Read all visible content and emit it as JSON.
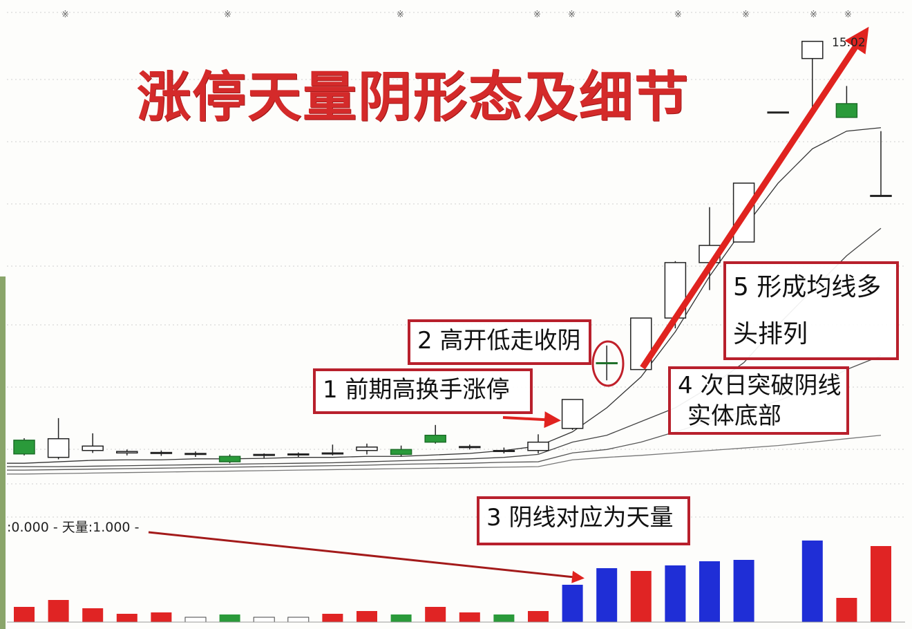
{
  "title": "涨停天量阴形态及细节",
  "high_label": "15.02",
  "legend_text": ":0.000 - 天量:1.000 -",
  "top_marker": "※",
  "annotations": [
    {
      "id": "1",
      "text": "1 前期高换手涨停"
    },
    {
      "id": "2",
      "text": "2 高开低走收阴"
    },
    {
      "id": "3",
      "text": "3 阴线对应为天量"
    },
    {
      "id": "4",
      "line1": "4 次日突破阴线",
      "line2": "实体底部"
    },
    {
      "id": "5",
      "line1": "5 形成均线多",
      "line2": "头排列"
    }
  ],
  "colors": {
    "title": "#d42a2a",
    "box_border": "#b8202c",
    "arrow": "#e0231f",
    "up_volume": "#e02424",
    "down_volume": "#1f2ed6",
    "down_candle": "#2a9a3a",
    "flat_volume": "#2a9a3a"
  },
  "chart_data": {
    "type": "candlestick",
    "grid": true,
    "candles": [
      {
        "o": 6.89,
        "h": 6.93,
        "l": 6.58,
        "c": 6.61,
        "dir": "down"
      },
      {
        "o": 6.54,
        "h": 7.34,
        "l": 6.5,
        "c": 6.92,
        "dir": "up"
      },
      {
        "o": 6.68,
        "h": 7.03,
        "l": 6.63,
        "c": 6.77,
        "dir": "up"
      },
      {
        "o": 6.63,
        "h": 6.7,
        "l": 6.58,
        "c": 6.66,
        "dir": "up"
      },
      {
        "o": 6.62,
        "h": 6.68,
        "l": 6.57,
        "c": 6.64,
        "dir": "up"
      },
      {
        "o": 6.6,
        "h": 6.66,
        "l": 6.55,
        "c": 6.62,
        "dir": "up"
      },
      {
        "o": 6.56,
        "h": 6.6,
        "l": 6.42,
        "c": 6.45,
        "dir": "down"
      },
      {
        "o": 6.58,
        "h": 6.62,
        "l": 6.52,
        "c": 6.6,
        "dir": "up"
      },
      {
        "o": 6.6,
        "h": 6.64,
        "l": 6.55,
        "c": 6.61,
        "dir": "up"
      },
      {
        "o": 6.62,
        "h": 6.8,
        "l": 6.58,
        "c": 6.63,
        "dir": "up"
      },
      {
        "o": 6.68,
        "h": 6.82,
        "l": 6.6,
        "c": 6.75,
        "dir": "up"
      },
      {
        "o": 6.7,
        "h": 6.78,
        "l": 6.56,
        "c": 6.6,
        "dir": "down"
      },
      {
        "o": 6.99,
        "h": 7.2,
        "l": 6.82,
        "c": 6.85,
        "dir": "down"
      },
      {
        "o": 6.75,
        "h": 6.8,
        "l": 6.7,
        "c": 6.76,
        "dir": "up"
      },
      {
        "o": 6.66,
        "h": 6.74,
        "l": 6.62,
        "c": 6.68,
        "dir": "up"
      },
      {
        "o": 6.68,
        "h": 7.01,
        "l": 6.62,
        "c": 6.85,
        "dir": "up"
      },
      {
        "o": 7.13,
        "h": 7.72,
        "l": 7.1,
        "c": 7.72,
        "dir": "up"
      },
      {
        "o": 8.47,
        "h": 8.82,
        "l": 8.11,
        "c": 8.46,
        "dir": "down"
      },
      {
        "o": 8.33,
        "h": 9.38,
        "l": 8.33,
        "c": 9.38,
        "dir": "up"
      },
      {
        "o": 9.38,
        "h": 10.54,
        "l": 9.17,
        "c": 10.51,
        "dir": "up"
      },
      {
        "o": 10.51,
        "h": 11.64,
        "l": 9.95,
        "c": 10.86,
        "dir": "up"
      },
      {
        "o": 10.93,
        "h": 12.13,
        "l": 10.93,
        "c": 12.13,
        "dir": "up"
      },
      {
        "o": 13.58,
        "h": 13.58,
        "l": 13.58,
        "c": 13.58,
        "dir": "up"
      },
      {
        "o": 14.67,
        "h": 15.02,
        "l": 13.54,
        "c": 15.02,
        "dir": "up"
      },
      {
        "o": 13.75,
        "h": 14.11,
        "l": 13.47,
        "c": 13.47,
        "dir": "down"
      },
      {
        "o": 11.88,
        "h": 13.19,
        "l": 11.88,
        "c": 11.88,
        "dir": "up"
      }
    ],
    "moving_averages": [
      [
        6.42,
        6.45,
        6.48,
        6.49,
        6.49,
        6.51,
        6.51,
        6.52,
        6.54,
        6.54,
        6.56,
        6.56,
        6.59,
        6.62,
        6.68,
        6.77,
        7.06,
        7.55,
        8.18,
        9.1,
        10.23,
        11.21,
        12.13,
        12.83,
        13.19,
        13.26
      ],
      [
        6.35,
        6.35,
        6.36,
        6.37,
        6.38,
        6.39,
        6.4,
        6.41,
        6.42,
        6.43,
        6.45,
        6.47,
        6.49,
        6.51,
        6.54,
        6.6,
        6.85,
        6.99,
        7.27,
        7.55,
        7.97,
        8.47,
        9.24,
        9.95,
        10.65,
        11.21
      ],
      [
        6.28,
        6.29,
        6.3,
        6.31,
        6.32,
        6.33,
        6.34,
        6.35,
        6.36,
        6.37,
        6.38,
        6.4,
        6.41,
        6.42,
        6.44,
        6.45,
        6.63,
        6.7,
        6.85,
        7.06,
        7.27,
        7.48,
        7.69,
        7.97,
        8.33,
        8.61
      ],
      [
        6.2,
        6.21,
        6.22,
        6.23,
        6.24,
        6.25,
        6.26,
        6.27,
        6.28,
        6.29,
        6.3,
        6.31,
        6.32,
        6.33,
        6.34,
        6.35,
        6.49,
        6.54,
        6.58,
        6.63,
        6.68,
        6.73,
        6.78,
        6.85,
        6.92,
        6.99
      ]
    ],
    "volume": [
      {
        "v": 22,
        "color": "red"
      },
      {
        "v": 32,
        "color": "red"
      },
      {
        "v": 20,
        "color": "red"
      },
      {
        "v": 12,
        "color": "red"
      },
      {
        "v": 14,
        "color": "red"
      },
      {
        "v": 7,
        "color": "white"
      },
      {
        "v": 11,
        "color": "green"
      },
      {
        "v": 7,
        "color": "white"
      },
      {
        "v": 7,
        "color": "white"
      },
      {
        "v": 12,
        "color": "red"
      },
      {
        "v": 16,
        "color": "red"
      },
      {
        "v": 11,
        "color": "green"
      },
      {
        "v": 22,
        "color": "red"
      },
      {
        "v": 14,
        "color": "red"
      },
      {
        "v": 11,
        "color": "green"
      },
      {
        "v": 16,
        "color": "red"
      },
      {
        "v": 54,
        "color": "blue"
      },
      {
        "v": 78,
        "color": "blue"
      },
      {
        "v": 74,
        "color": "red"
      },
      {
        "v": 82,
        "color": "blue"
      },
      {
        "v": 88,
        "color": "blue"
      },
      {
        "v": 90,
        "color": "blue"
      },
      {
        "v": 0,
        "color": "blue"
      },
      {
        "v": 118,
        "color": "blue"
      },
      {
        "v": 35,
        "color": "red"
      },
      {
        "v": 110,
        "color": "red"
      }
    ]
  }
}
